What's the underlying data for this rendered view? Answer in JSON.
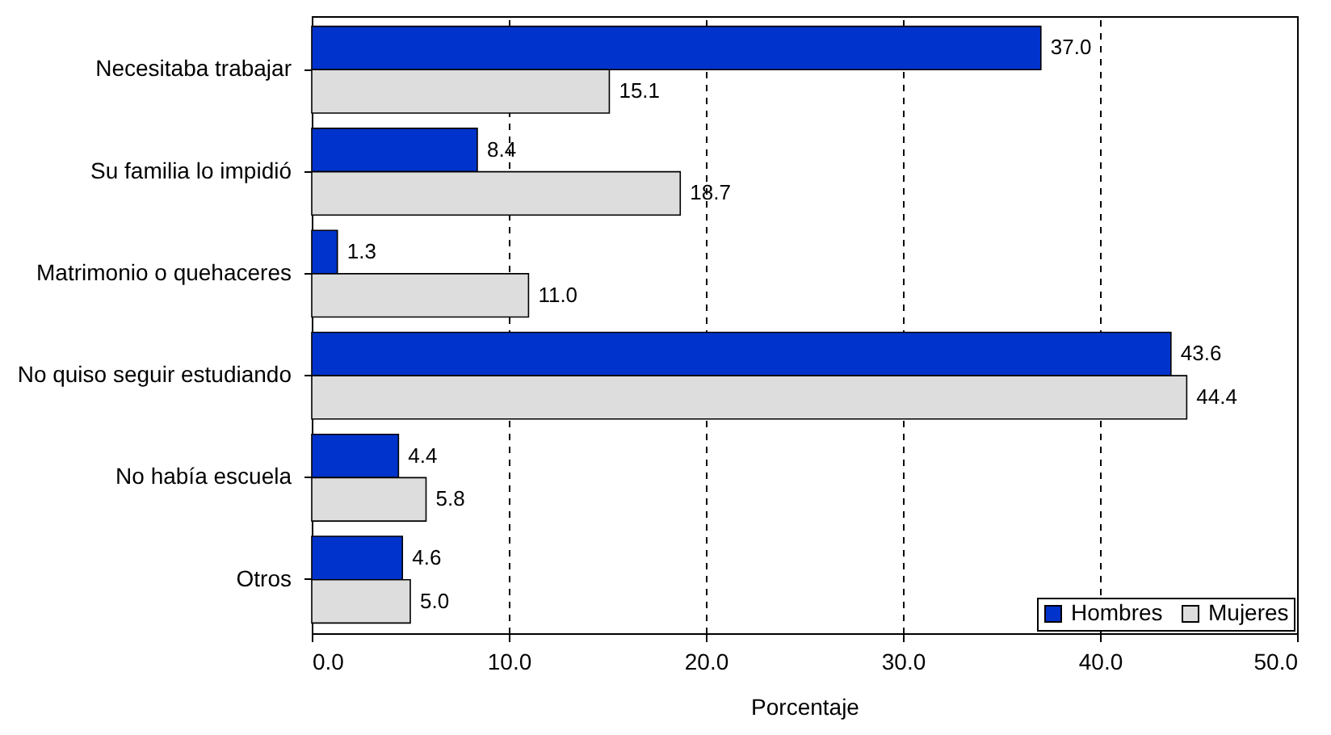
{
  "chart_data": {
    "type": "bar",
    "orientation": "horizontal",
    "xlabel": "Porcentaje",
    "categories": [
      "Necesitaba trabajar",
      "Su familia lo impidió",
      "Matrimonio o quehaceres",
      "No quiso seguir estudiando",
      "No había escuela",
      "Otros"
    ],
    "series": [
      {
        "name": "Hombres",
        "color": "#0033cc",
        "values": [
          37.0,
          8.4,
          1.3,
          43.6,
          4.4,
          4.6
        ],
        "value_labels": [
          "37.0",
          "8.4",
          "1.3",
          "43.6",
          "4.4",
          "4.6"
        ]
      },
      {
        "name": "Mujeres",
        "color": "#dddddd",
        "values": [
          15.1,
          18.7,
          11.0,
          44.4,
          5.8,
          5.0
        ],
        "value_labels": [
          "15.1",
          "18.7",
          "11.0",
          "44.4",
          "5.8",
          "5.0"
        ]
      }
    ],
    "xlim": [
      0,
      50
    ],
    "xticks": [
      {
        "value": 0,
        "label": "0.0"
      },
      {
        "value": 10,
        "label": "10.0"
      },
      {
        "value": 20,
        "label": "20.0"
      },
      {
        "value": 30,
        "label": "30.0"
      },
      {
        "value": 40,
        "label": "40.0"
      },
      {
        "value": 50,
        "label": "50.0"
      }
    ],
    "grid": "x",
    "legend": "bottom right"
  }
}
